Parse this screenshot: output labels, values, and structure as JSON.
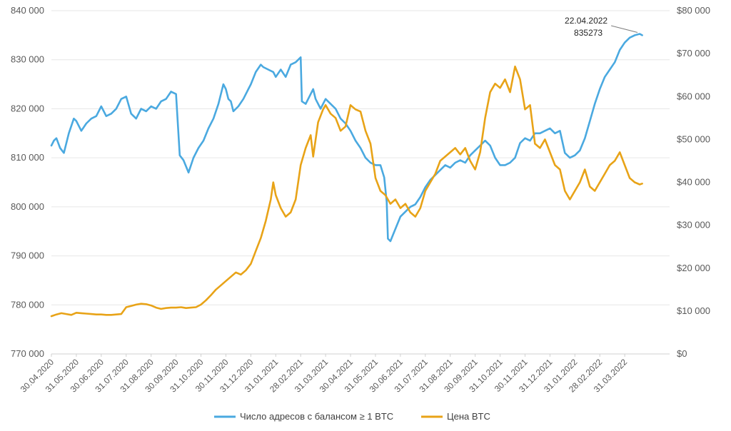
{
  "chart_data": {
    "type": "line",
    "title": "",
    "colors": {
      "addresses": "#4aa9e0",
      "price": "#e8a317"
    },
    "left_axis": {
      "range": [
        770000,
        840000
      ],
      "ticks": [
        "770 000",
        "780 000",
        "790 000",
        "800 000",
        "810 000",
        "820 000",
        "830 000",
        "840 000"
      ]
    },
    "right_axis": {
      "range": [
        0,
        80000
      ],
      "ticks": [
        "$0",
        "$10 000",
        "$20 000",
        "$30 000",
        "$40 000",
        "$50 000",
        "$60 000",
        "$70 000",
        "$80 000"
      ]
    },
    "x_ticks": [
      "30.04.2020",
      "31.05.2020",
      "30.06.2020",
      "31.07.2020",
      "31.08.2020",
      "30.09.2020",
      "31.10.2020",
      "30.11.2020",
      "31.12.2020",
      "31.01.2021",
      "28.02.2021",
      "31.03.2021",
      "30.04.2021",
      "31.05.2021",
      "30.06.2021",
      "31.07.2021",
      "31.08.2021",
      "30.09.2021",
      "31.10.2021",
      "30.11.2021",
      "31.12.2021",
      "31.01.2022",
      "28.02.2022",
      "31.03.2022"
    ],
    "series": [
      {
        "name": "Число адресов с балансом ≥ 1 BTC",
        "axis": "left",
        "values": [
          [
            0,
            812500
          ],
          [
            0.1,
            813500
          ],
          [
            0.2,
            814000
          ],
          [
            0.35,
            812000
          ],
          [
            0.5,
            811000
          ],
          [
            0.7,
            815000
          ],
          [
            0.9,
            818000
          ],
          [
            1.0,
            817500
          ],
          [
            1.2,
            815500
          ],
          [
            1.4,
            817000
          ],
          [
            1.6,
            818000
          ],
          [
            1.8,
            818500
          ],
          [
            2.0,
            820500
          ],
          [
            2.2,
            818500
          ],
          [
            2.4,
            819000
          ],
          [
            2.6,
            820000
          ],
          [
            2.8,
            822000
          ],
          [
            3.0,
            822500
          ],
          [
            3.2,
            819000
          ],
          [
            3.4,
            818000
          ],
          [
            3.6,
            820000
          ],
          [
            3.8,
            819500
          ],
          [
            4.0,
            820500
          ],
          [
            4.2,
            820000
          ],
          [
            4.4,
            821500
          ],
          [
            4.6,
            822000
          ],
          [
            4.8,
            823500
          ],
          [
            5.0,
            823000
          ],
          [
            5.15,
            810500
          ],
          [
            5.3,
            809500
          ],
          [
            5.5,
            807000
          ],
          [
            5.7,
            810000
          ],
          [
            5.9,
            812000
          ],
          [
            6.1,
            813500
          ],
          [
            6.3,
            816000
          ],
          [
            6.5,
            818000
          ],
          [
            6.7,
            821000
          ],
          [
            6.9,
            825000
          ],
          [
            7.0,
            824000
          ],
          [
            7.1,
            822000
          ],
          [
            7.2,
            821500
          ],
          [
            7.3,
            819500
          ],
          [
            7.5,
            820500
          ],
          [
            7.7,
            822000
          ],
          [
            7.9,
            824000
          ],
          [
            8.0,
            825000
          ],
          [
            8.2,
            827500
          ],
          [
            8.4,
            829000
          ],
          [
            8.5,
            828500
          ],
          [
            8.7,
            828000
          ],
          [
            8.9,
            827500
          ],
          [
            9.0,
            826500
          ],
          [
            9.2,
            828000
          ],
          [
            9.4,
            826500
          ],
          [
            9.6,
            829000
          ],
          [
            9.8,
            829500
          ],
          [
            10.0,
            830500
          ],
          [
            10.05,
            821500
          ],
          [
            10.2,
            821000
          ],
          [
            10.4,
            823000
          ],
          [
            10.5,
            824000
          ],
          [
            10.6,
            822000
          ],
          [
            10.8,
            820000
          ],
          [
            11.0,
            822000
          ],
          [
            11.2,
            821000
          ],
          [
            11.4,
            820000
          ],
          [
            11.6,
            818000
          ],
          [
            11.8,
            817000
          ],
          [
            12.0,
            815500
          ],
          [
            12.2,
            813500
          ],
          [
            12.4,
            812000
          ],
          [
            12.6,
            810000
          ],
          [
            12.8,
            809000
          ],
          [
            13.0,
            808500
          ],
          [
            13.2,
            808500
          ],
          [
            13.35,
            806000
          ],
          [
            13.45,
            801000
          ],
          [
            13.5,
            793500
          ],
          [
            13.6,
            793000
          ],
          [
            13.8,
            795500
          ],
          [
            14.0,
            798000
          ],
          [
            14.2,
            799000
          ],
          [
            14.4,
            800000
          ],
          [
            14.6,
            800500
          ],
          [
            14.8,
            802000
          ],
          [
            15.0,
            804000
          ],
          [
            15.2,
            805500
          ],
          [
            15.4,
            806500
          ],
          [
            15.6,
            807500
          ],
          [
            15.8,
            808500
          ],
          [
            16.0,
            808000
          ],
          [
            16.2,
            809000
          ],
          [
            16.4,
            809500
          ],
          [
            16.6,
            809000
          ],
          [
            16.8,
            810500
          ],
          [
            17.0,
            811500
          ],
          [
            17.2,
            812500
          ],
          [
            17.4,
            813500
          ],
          [
            17.6,
            812500
          ],
          [
            17.8,
            810000
          ],
          [
            18.0,
            808500
          ],
          [
            18.2,
            808500
          ],
          [
            18.4,
            809000
          ],
          [
            18.6,
            810000
          ],
          [
            18.8,
            813000
          ],
          [
            19.0,
            814000
          ],
          [
            19.2,
            813500
          ],
          [
            19.4,
            815000
          ],
          [
            19.6,
            815000
          ],
          [
            19.8,
            815500
          ],
          [
            20.0,
            816000
          ],
          [
            20.2,
            815000
          ],
          [
            20.4,
            815500
          ],
          [
            20.6,
            811000
          ],
          [
            20.8,
            810000
          ],
          [
            21.0,
            810500
          ],
          [
            21.2,
            811500
          ],
          [
            21.4,
            814000
          ],
          [
            21.6,
            817500
          ],
          [
            21.8,
            821000
          ],
          [
            22.0,
            824000
          ],
          [
            22.2,
            826500
          ],
          [
            22.4,
            828000
          ],
          [
            22.6,
            829500
          ],
          [
            22.8,
            832000
          ],
          [
            23.0,
            833500
          ],
          [
            23.2,
            834500
          ],
          [
            23.4,
            835000
          ],
          [
            23.6,
            835273
          ],
          [
            23.7,
            835000
          ]
        ]
      },
      {
        "name": "Цена BTC",
        "axis": "right",
        "values": [
          [
            0,
            8800
          ],
          [
            0.2,
            9200
          ],
          [
            0.4,
            9500
          ],
          [
            0.6,
            9300
          ],
          [
            0.8,
            9100
          ],
          [
            1.0,
            9600
          ],
          [
            1.2,
            9500
          ],
          [
            1.4,
            9400
          ],
          [
            1.6,
            9300
          ],
          [
            1.8,
            9200
          ],
          [
            2.0,
            9200
          ],
          [
            2.2,
            9100
          ],
          [
            2.4,
            9100
          ],
          [
            2.6,
            9200
          ],
          [
            2.8,
            9300
          ],
          [
            3.0,
            10900
          ],
          [
            3.2,
            11200
          ],
          [
            3.4,
            11500
          ],
          [
            3.6,
            11700
          ],
          [
            3.8,
            11600
          ],
          [
            4.0,
            11300
          ],
          [
            4.2,
            10800
          ],
          [
            4.4,
            10500
          ],
          [
            4.6,
            10700
          ],
          [
            4.8,
            10800
          ],
          [
            5.0,
            10800
          ],
          [
            5.2,
            10900
          ],
          [
            5.4,
            10700
          ],
          [
            5.6,
            10800
          ],
          [
            5.8,
            10900
          ],
          [
            6.0,
            11500
          ],
          [
            6.2,
            12500
          ],
          [
            6.4,
            13700
          ],
          [
            6.6,
            15000
          ],
          [
            6.8,
            16000
          ],
          [
            7.0,
            17000
          ],
          [
            7.2,
            18000
          ],
          [
            7.4,
            19000
          ],
          [
            7.6,
            18500
          ],
          [
            7.8,
            19500
          ],
          [
            8.0,
            21000
          ],
          [
            8.2,
            24000
          ],
          [
            8.4,
            27000
          ],
          [
            8.6,
            31000
          ],
          [
            8.8,
            36000
          ],
          [
            8.9,
            40000
          ],
          [
            9.0,
            37000
          ],
          [
            9.2,
            34000
          ],
          [
            9.4,
            32000
          ],
          [
            9.6,
            33000
          ],
          [
            9.8,
            36000
          ],
          [
            10.0,
            44000
          ],
          [
            10.2,
            48000
          ],
          [
            10.4,
            51000
          ],
          [
            10.5,
            46000
          ],
          [
            10.7,
            54000
          ],
          [
            10.9,
            57000
          ],
          [
            11.0,
            58000
          ],
          [
            11.2,
            56000
          ],
          [
            11.4,
            55000
          ],
          [
            11.6,
            52000
          ],
          [
            11.8,
            53000
          ],
          [
            12.0,
            58000
          ],
          [
            12.2,
            57000
          ],
          [
            12.4,
            56500
          ],
          [
            12.6,
            52000
          ],
          [
            12.8,
            49000
          ],
          [
            13.0,
            41000
          ],
          [
            13.2,
            38000
          ],
          [
            13.4,
            37000
          ],
          [
            13.6,
            35000
          ],
          [
            13.8,
            36000
          ],
          [
            14.0,
            34000
          ],
          [
            14.2,
            35000
          ],
          [
            14.4,
            33000
          ],
          [
            14.6,
            32000
          ],
          [
            14.8,
            34000
          ],
          [
            15.0,
            38000
          ],
          [
            15.2,
            40000
          ],
          [
            15.4,
            42000
          ],
          [
            15.6,
            45000
          ],
          [
            15.8,
            46000
          ],
          [
            16.0,
            47000
          ],
          [
            16.2,
            48000
          ],
          [
            16.4,
            46500
          ],
          [
            16.6,
            48000
          ],
          [
            16.8,
            45000
          ],
          [
            17.0,
            43000
          ],
          [
            17.2,
            47000
          ],
          [
            17.4,
            55000
          ],
          [
            17.6,
            61000
          ],
          [
            17.8,
            63000
          ],
          [
            18.0,
            62000
          ],
          [
            18.2,
            64000
          ],
          [
            18.4,
            61000
          ],
          [
            18.6,
            67000
          ],
          [
            18.8,
            64000
          ],
          [
            19.0,
            57000
          ],
          [
            19.2,
            58000
          ],
          [
            19.4,
            49000
          ],
          [
            19.6,
            48000
          ],
          [
            19.8,
            50000
          ],
          [
            20.0,
            47000
          ],
          [
            20.2,
            44000
          ],
          [
            20.4,
            43000
          ],
          [
            20.6,
            38000
          ],
          [
            20.8,
            36000
          ],
          [
            21.0,
            38000
          ],
          [
            21.2,
            40000
          ],
          [
            21.4,
            43000
          ],
          [
            21.6,
            39000
          ],
          [
            21.8,
            38000
          ],
          [
            22.0,
            40000
          ],
          [
            22.2,
            42000
          ],
          [
            22.4,
            44000
          ],
          [
            22.6,
            45000
          ],
          [
            22.8,
            47000
          ],
          [
            23.0,
            44000
          ],
          [
            23.2,
            41000
          ],
          [
            23.4,
            40000
          ],
          [
            23.6,
            39500
          ],
          [
            23.7,
            39700
          ]
        ]
      }
    ],
    "annotation": {
      "date": "22.04.2022",
      "value": "835273",
      "x": 23.6,
      "y": 835273
    },
    "legend": [
      "Число адресов с балансом ≥ 1 BTC",
      "Цена BTC"
    ]
  }
}
